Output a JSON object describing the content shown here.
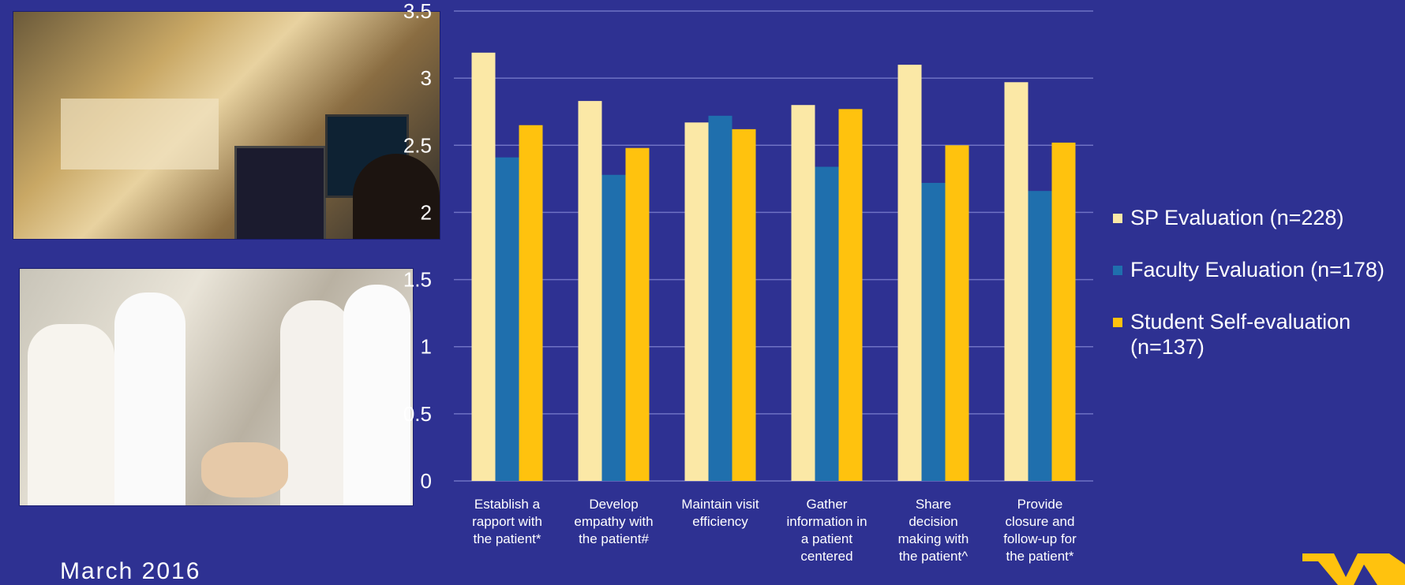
{
  "date_text": "March  2016",
  "colors": {
    "background": "#2e3192",
    "sp": "#fbe8a6",
    "faculty": "#1f6fad",
    "student": "#ffc20e",
    "logo": "#ffc20e"
  },
  "chart_data": {
    "type": "bar",
    "title": "",
    "xlabel": "",
    "ylabel": "",
    "ylim": [
      0,
      3.5
    ],
    "yticks": [
      "0",
      "0.5",
      "1",
      "1.5",
      "2",
      "2.5",
      "3",
      "3.5"
    ],
    "grid": true,
    "legend_position": "right",
    "categories": [
      [
        "Establish a",
        "rapport with",
        "the patient*"
      ],
      [
        "Develop",
        "empathy with",
        "the patient#"
      ],
      [
        "Maintain visit",
        "efficiency"
      ],
      [
        "Gather",
        "information in",
        "a patient",
        "centered"
      ],
      [
        "Share",
        "decision",
        "making with",
        "the patient^"
      ],
      [
        "Provide",
        "closure and",
        "follow-up for",
        "the patient*"
      ]
    ],
    "series": [
      {
        "name": "SP Evaluation (n=228)",
        "color": "#fbe8a6",
        "values": [
          3.19,
          2.83,
          2.67,
          2.8,
          3.1,
          2.97
        ]
      },
      {
        "name": "Faculty Evaluation (n=178)",
        "color": "#1f6fad",
        "values": [
          2.41,
          2.28,
          2.72,
          2.34,
          2.22,
          2.16
        ]
      },
      {
        "name": "Student Self-evaluation (n=137)",
        "color": "#ffc20e",
        "values": [
          2.65,
          2.48,
          2.62,
          2.77,
          2.5,
          2.52
        ]
      }
    ]
  },
  "legend": {
    "items": [
      {
        "label": "SP Evaluation (n=228)"
      },
      {
        "label": "Faculty Evaluation (n=178)"
      },
      {
        "label_line1": "Student Self-evaluation",
        "label_line2": "(n=137)"
      }
    ]
  }
}
